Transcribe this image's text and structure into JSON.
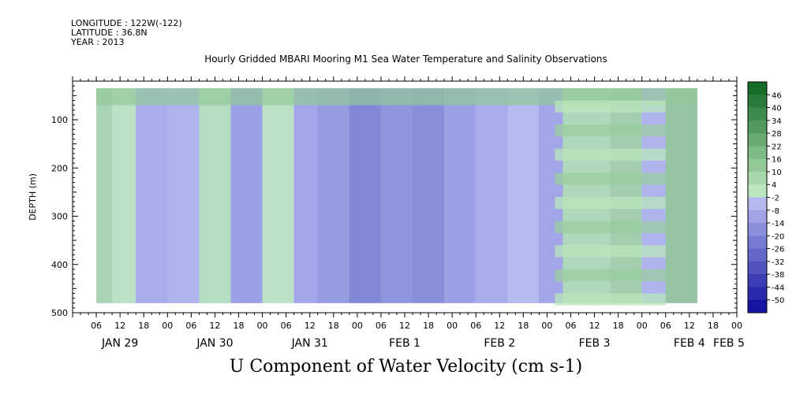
{
  "header": {
    "longitude": "LONGITUDE : 122W(-122)",
    "latitude": "LATITUDE : 36.8N",
    "year": "YEAR : 2013"
  },
  "chart_data": {
    "type": "heatmap",
    "title": "Hourly Gridded MBARI Mooring M1 Sea Water Temperature and Salinity Observations",
    "bottom_title": "U Component of Water Velocity (cm s-1)",
    "ylabel": "DEPTH (m)",
    "ylim": [
      500,
      20
    ],
    "y_inverted": true,
    "y_ticks": [
      100,
      200,
      300,
      400,
      500
    ],
    "x_hour_ticks": [
      "06",
      "12",
      "18",
      "00",
      "06",
      "12",
      "18",
      "00",
      "06",
      "12",
      "18",
      "00",
      "06",
      "12",
      "18",
      "00",
      "06",
      "12",
      "18",
      "00",
      "06",
      "12",
      "18",
      "00",
      "06",
      "12",
      "18",
      "00"
    ],
    "x_day_labels": [
      "JAN 29",
      "JAN 30",
      "JAN 31",
      "FEB  1",
      "FEB  2",
      "FEB  3",
      "FEB  4",
      "FEB  5"
    ],
    "colorbar": {
      "levels": [
        "46",
        "40",
        "34",
        "28",
        "22",
        "16",
        "10",
        "4",
        "-2",
        "-8",
        "-14",
        "-20",
        "-26",
        "-32",
        "-38",
        "-44",
        "-50"
      ],
      "range": [
        -50,
        50
      ]
    },
    "color_bands": [
      {
        "start_hour": 6,
        "end_hour": 10,
        "value": 8
      },
      {
        "start_hour": 10,
        "end_hour": 16,
        "value": 2
      },
      {
        "start_hour": 16,
        "end_hour": 24,
        "value": -6
      },
      {
        "start_hour": 24,
        "end_hour": 32,
        "value": -4
      },
      {
        "start_hour": 32,
        "end_hour": 40,
        "value": 4
      },
      {
        "start_hour": 40,
        "end_hour": 48,
        "value": -10
      },
      {
        "start_hour": 48,
        "end_hour": 56,
        "value": 2
      },
      {
        "start_hour": 56,
        "end_hour": 62,
        "value": -8
      },
      {
        "start_hour": 62,
        "end_hour": 70,
        "value": -12
      },
      {
        "start_hour": 70,
        "end_hour": 78,
        "value": -18
      },
      {
        "start_hour": 78,
        "end_hour": 86,
        "value": -14
      },
      {
        "start_hour": 86,
        "end_hour": 94,
        "value": -16
      },
      {
        "start_hour": 94,
        "end_hour": 102,
        "value": -10
      },
      {
        "start_hour": 102,
        "end_hour": 110,
        "value": -6
      },
      {
        "start_hour": 110,
        "end_hour": 118,
        "value": -2
      },
      {
        "start_hour": 118,
        "end_hour": 124,
        "value": -8
      },
      {
        "start_hour": 124,
        "end_hour": 136,
        "value": 6
      },
      {
        "start_hour": 136,
        "end_hour": 144,
        "value": 10
      },
      {
        "start_hour": 144,
        "end_hour": 150,
        "value": -4
      },
      {
        "start_hour": 150,
        "end_hour": 158,
        "value": 14
      }
    ]
  }
}
